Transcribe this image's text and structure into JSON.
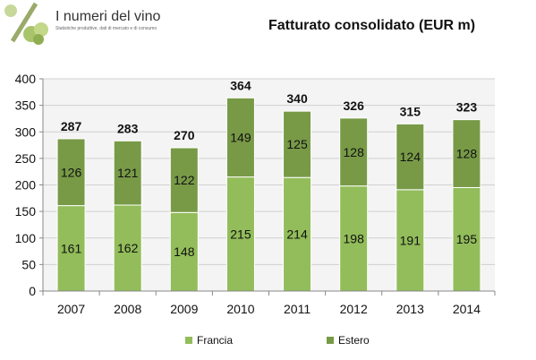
{
  "brand": {
    "name": "I numeri del vino",
    "tagline": "Statistiche produttive, dati di mercato e di consumo"
  },
  "chart_data": {
    "type": "bar",
    "stacked": true,
    "title": "Fatturato consolidato (EUR m)",
    "categories": [
      "2007",
      "2008",
      "2009",
      "2010",
      "2011",
      "2012",
      "2013",
      "2014"
    ],
    "series": [
      {
        "name": "Francia",
        "values": [
          161,
          162,
          148,
          215,
          214,
          198,
          191,
          195
        ],
        "color": "#92bd5a"
      },
      {
        "name": "Estero",
        "values": [
          126,
          121,
          122,
          149,
          125,
          128,
          124,
          128
        ],
        "color": "#789a47"
      }
    ],
    "totals": [
      287,
      283,
      270,
      364,
      340,
      326,
      315,
      323
    ],
    "ylim": [
      0,
      400
    ],
    "yticks": [
      0,
      50,
      100,
      150,
      200,
      250,
      300,
      350,
      400
    ],
    "grid": true,
    "legend_position": "bottom"
  }
}
